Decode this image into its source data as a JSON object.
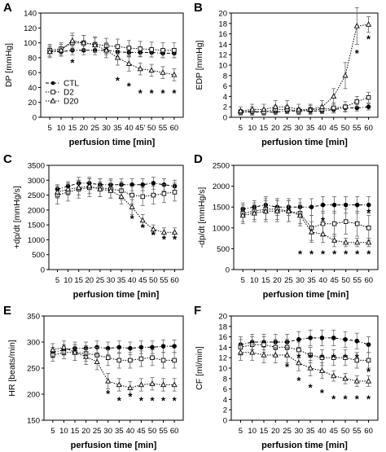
{
  "chart_data": [
    {
      "panel": "A",
      "type": "line",
      "ylabel": "DP [mmHg]",
      "xlabel": "perfusion time [min]",
      "ylim": [
        0,
        140
      ],
      "yticks": [
        0,
        20,
        40,
        60,
        80,
        100,
        120,
        140
      ],
      "x": [
        "5",
        "10",
        "15",
        "20",
        "25",
        "30",
        "35",
        "40",
        "45",
        "50",
        "55",
        "60"
      ],
      "x_display": [
        "5",
        "10",
        "15",
        "20",
        "25",
        "30",
        "35",
        "40",
        "45'",
        "50",
        "55",
        "60"
      ],
      "legend": [
        "CTL",
        "D2",
        "D20"
      ],
      "series": [
        {
          "name": "CTL",
          "marker": "filled-circle",
          "dash": "dash-dot",
          "values": [
            88,
            88,
            90,
            90,
            90,
            90,
            88,
            87,
            87,
            87,
            86,
            86
          ],
          "err": [
            6,
            6,
            6,
            6,
            6,
            6,
            6,
            6,
            6,
            6,
            6,
            6
          ]
        },
        {
          "name": "D2",
          "marker": "open-square",
          "dash": "dot",
          "values": [
            90,
            92,
            100,
            100,
            98,
            96,
            95,
            93,
            92,
            91,
            90,
            90
          ],
          "err": [
            8,
            8,
            10,
            10,
            10,
            10,
            10,
            10,
            10,
            10,
            10,
            10
          ]
        },
        {
          "name": "D20",
          "marker": "open-triangle",
          "dash": "dot",
          "values": [
            88,
            90,
            103,
            100,
            97,
            90,
            80,
            72,
            65,
            63,
            60,
            57
          ],
          "err": [
            8,
            8,
            10,
            10,
            10,
            10,
            10,
            10,
            8,
            8,
            8,
            8
          ]
        }
      ],
      "stars": [
        {
          "x": "15",
          "y": 75
        },
        {
          "x": "35",
          "y": 51
        },
        {
          "x": "40",
          "y": 43
        },
        {
          "x": "45",
          "y": 34
        },
        {
          "x": "50",
          "y": 34
        },
        {
          "x": "55",
          "y": 34
        },
        {
          "x": "60",
          "y": 34
        }
      ]
    },
    {
      "panel": "B",
      "type": "line",
      "ylabel": "EDP [mmHg]",
      "xlabel": "perfusion time [min]",
      "ylim": [
        0,
        20
      ],
      "yticks": [
        0,
        2,
        4,
        6,
        8,
        10,
        12,
        14,
        16,
        18,
        20
      ],
      "x": [
        "5",
        "10",
        "15",
        "20",
        "25",
        "30",
        "35",
        "40",
        "45",
        "50",
        "55",
        "60"
      ],
      "x_display": [
        "5",
        "10",
        "15",
        "20",
        "25",
        "30",
        "35",
        "40",
        "45",
        "50",
        "55",
        "60"
      ],
      "series": [
        {
          "name": "CTL",
          "marker": "filled-circle",
          "dash": "dash-dot",
          "values": [
            1.0,
            1.0,
            1.0,
            1.0,
            1.2,
            1.2,
            1.2,
            1.2,
            1.5,
            1.8,
            1.8,
            2.0
          ],
          "err": [
            0.5,
            0.5,
            0.5,
            0.5,
            0.5,
            0.5,
            0.5,
            0.5,
            0.5,
            0.6,
            0.6,
            0.6
          ]
        },
        {
          "name": "D2",
          "marker": "open-square",
          "dash": "dot",
          "values": [
            1.0,
            1.2,
            1.0,
            1.5,
            1.5,
            1.2,
            1.5,
            1.5,
            1.8,
            2.0,
            3.0,
            3.8
          ],
          "err": [
            0.5,
            0.8,
            0.6,
            0.8,
            0.8,
            0.6,
            0.8,
            0.8,
            1.0,
            1.0,
            1.0,
            1.0
          ]
        },
        {
          "name": "D20",
          "marker": "open-triangle",
          "dash": "dot",
          "values": [
            1.2,
            1.5,
            1.5,
            2.0,
            2.0,
            1.5,
            1.5,
            2.0,
            4.0,
            8.0,
            17.5,
            17.8
          ],
          "err": [
            0.8,
            1.0,
            1.0,
            1.2,
            1.2,
            1.0,
            1.0,
            1.2,
            1.5,
            2.5,
            3.5,
            1.5
          ]
        }
      ],
      "stars": [
        {
          "x": "55",
          "y": 12.5
        },
        {
          "x": "60",
          "y": 15.2
        }
      ]
    },
    {
      "panel": "C",
      "type": "line",
      "ylabel": "+dp/dt [mmHg/s]",
      "xlabel": "perfusion time [min]",
      "ylim": [
        0,
        3500
      ],
      "yticks": [
        0,
        500,
        1000,
        1500,
        2000,
        2500,
        3000,
        3500
      ],
      "x": [
        "5",
        "10",
        "15",
        "20",
        "25",
        "30",
        "35",
        "40",
        "45",
        "50",
        "55",
        "60"
      ],
      "x_display": [
        "5",
        "10",
        "15",
        "20",
        "25",
        "30",
        "35",
        "40",
        "45",
        "50",
        "55",
        "60"
      ],
      "series": [
        {
          "name": "CTL",
          "marker": "filled-circle",
          "dash": "dash-dot",
          "values": [
            2700,
            2800,
            2900,
            2900,
            2850,
            2850,
            2850,
            2850,
            2850,
            2900,
            2850,
            2800
          ],
          "err": [
            150,
            150,
            200,
            200,
            200,
            200,
            200,
            200,
            200,
            200,
            200,
            200
          ]
        },
        {
          "name": "D2",
          "marker": "open-square",
          "dash": "dot",
          "values": [
            2500,
            2600,
            2700,
            2750,
            2750,
            2700,
            2650,
            2500,
            2450,
            2500,
            2550,
            2600
          ],
          "err": [
            300,
            300,
            300,
            300,
            300,
            300,
            300,
            300,
            300,
            300,
            300,
            300
          ]
        },
        {
          "name": "D20",
          "marker": "open-triangle",
          "dash": "dot",
          "values": [
            2600,
            2700,
            2750,
            2800,
            2700,
            2650,
            2450,
            2100,
            1650,
            1350,
            1250,
            1250
          ],
          "err": [
            200,
            200,
            250,
            250,
            250,
            250,
            250,
            250,
            200,
            150,
            150,
            150
          ]
        }
      ],
      "stars": [
        {
          "x": "40",
          "y": 1750
        },
        {
          "x": "45",
          "y": 1450
        },
        {
          "x": "50",
          "y": 1200
        },
        {
          "x": "55",
          "y": 1050
        },
        {
          "x": "60",
          "y": 1050
        }
      ]
    },
    {
      "panel": "D",
      "type": "line",
      "ylabel": "-dp/dt [mmHg/s]",
      "xlabel": "perfusion time [min]",
      "ylim": [
        0,
        2500
      ],
      "yticks": [
        0,
        500,
        1000,
        1500,
        2000,
        2500
      ],
      "x": [
        "5",
        "10",
        "15",
        "20",
        "25",
        "30",
        "35",
        "40",
        "45",
        "50",
        "55",
        "60"
      ],
      "x_display": [
        "5",
        "10",
        "15",
        "20",
        "25",
        "30",
        "35",
        "40",
        "45",
        "50",
        "55",
        "60"
      ],
      "series": [
        {
          "name": "CTL",
          "marker": "filled-circle",
          "dash": "dash-dot",
          "values": [
            1450,
            1500,
            1550,
            1500,
            1500,
            1500,
            1500,
            1550,
            1550,
            1550,
            1550,
            1550
          ],
          "err": [
            150,
            150,
            200,
            200,
            200,
            200,
            200,
            200,
            200,
            200,
            200,
            200
          ]
        },
        {
          "name": "D2",
          "marker": "open-square",
          "dash": "dot",
          "values": [
            1350,
            1400,
            1450,
            1450,
            1400,
            1350,
            1000,
            1100,
            1100,
            1150,
            1100,
            1000
          ],
          "err": [
            200,
            200,
            250,
            250,
            250,
            250,
            300,
            300,
            300,
            300,
            300,
            300
          ]
        },
        {
          "name": "D20",
          "marker": "open-triangle",
          "dash": "dot",
          "values": [
            1300,
            1350,
            1400,
            1400,
            1400,
            1300,
            900,
            850,
            700,
            650,
            650,
            650
          ],
          "err": [
            200,
            200,
            250,
            250,
            250,
            250,
            250,
            200,
            150,
            100,
            100,
            100
          ]
        }
      ],
      "stars": [
        {
          "x": "30",
          "y": 400
        },
        {
          "x": "35",
          "y": 400
        },
        {
          "x": "40",
          "y": 1200
        },
        {
          "x": "40",
          "y": 400
        },
        {
          "x": "45",
          "y": 400
        },
        {
          "x": "50",
          "y": 400
        },
        {
          "x": "55",
          "y": 400
        },
        {
          "x": "60",
          "y": 1400
        },
        {
          "x": "60",
          "y": 400
        }
      ]
    },
    {
      "panel": "E",
      "type": "line",
      "ylabel": "HR [beats/min]",
      "xlabel": "perfusion time [min]",
      "ylim": [
        150,
        350
      ],
      "yticks": [
        150,
        200,
        250,
        300,
        350
      ],
      "x": [
        "5",
        "10",
        "15",
        "20",
        "25",
        "30",
        "35",
        "40",
        "45",
        "50",
        "55",
        "60"
      ],
      "x_display": [
        "5",
        "10",
        "15",
        "20",
        "25",
        "30",
        "35",
        "40",
        "45",
        "50",
        "55",
        "60"
      ],
      "series": [
        {
          "name": "CTL",
          "marker": "filled-circle",
          "dash": "dash-dot",
          "values": [
            280,
            285,
            288,
            288,
            290,
            288,
            290,
            288,
            290,
            290,
            292,
            292
          ],
          "err": [
            10,
            10,
            12,
            12,
            12,
            12,
            12,
            12,
            12,
            12,
            12,
            12
          ]
        },
        {
          "name": "D2",
          "marker": "open-square",
          "dash": "dot",
          "values": [
            275,
            280,
            280,
            278,
            275,
            270,
            265,
            265,
            268,
            270,
            265,
            265
          ],
          "err": [
            12,
            12,
            15,
            15,
            15,
            15,
            15,
            15,
            15,
            15,
            15,
            15
          ]
        },
        {
          "name": "D20",
          "marker": "open-triangle",
          "dash": "dot",
          "values": [
            285,
            290,
            280,
            272,
            262,
            225,
            218,
            212,
            218,
            220,
            218,
            218
          ],
          "err": [
            12,
            12,
            15,
            15,
            15,
            15,
            12,
            12,
            12,
            12,
            12,
            12
          ]
        }
      ],
      "stars": [
        {
          "x": "30",
          "y": 203
        },
        {
          "x": "35",
          "y": 190
        },
        {
          "x": "40",
          "y": 198
        },
        {
          "x": "45",
          "y": 190
        },
        {
          "x": "50",
          "y": 190
        },
        {
          "x": "55",
          "y": 190
        },
        {
          "x": "60",
          "y": 190
        }
      ]
    },
    {
      "panel": "F",
      "type": "line",
      "ylabel": "CF [ml/min]",
      "xlabel": "perfusion time [min]",
      "ylim": [
        0,
        20
      ],
      "yticks": [
        0,
        2,
        4,
        6,
        8,
        10,
        12,
        14,
        16,
        18,
        20
      ],
      "x": [
        "5",
        "10",
        "15",
        "20",
        "25",
        "30",
        "35",
        "40",
        "45",
        "50",
        "55",
        "60"
      ],
      "x_display": [
        "5",
        "10",
        "15",
        "20",
        "25",
        "30",
        "35",
        "40",
        "45",
        "50",
        "55",
        "60"
      ],
      "series": [
        {
          "name": "CTL",
          "marker": "filled-circle",
          "dash": "dash-dot",
          "values": [
            14.5,
            15.0,
            15.0,
            15.0,
            15.0,
            15.5,
            15.8,
            15.8,
            15.8,
            15.5,
            15.2,
            14.5
          ],
          "err": [
            1.5,
            1.5,
            1.5,
            1.5,
            1.5,
            1.5,
            1.5,
            1.5,
            1.5,
            1.5,
            1.5,
            1.5
          ]
        },
        {
          "name": "D2",
          "marker": "open-square",
          "dash": "dot",
          "values": [
            14.0,
            14.5,
            14.5,
            14.0,
            14.0,
            13.5,
            12.5,
            12.0,
            12.0,
            12.0,
            11.5,
            11.5
          ],
          "err": [
            1.5,
            1.5,
            1.5,
            1.5,
            1.5,
            1.5,
            1.5,
            1.5,
            1.5,
            1.5,
            1.5,
            1.5
          ]
        },
        {
          "name": "D20",
          "marker": "open-triangle",
          "dash": "dot",
          "values": [
            13.0,
            13.0,
            12.5,
            12.5,
            12.5,
            11.0,
            10.0,
            9.5,
            8.5,
            8.0,
            7.5,
            7.5
          ],
          "err": [
            1.5,
            1.5,
            1.5,
            1.5,
            1.5,
            1.5,
            1.5,
            1.5,
            1.0,
            1.0,
            1.0,
            1.0
          ]
        }
      ],
      "stars": [
        {
          "x": "30",
          "y": 12.3
        },
        {
          "x": "35",
          "y": 12.3
        },
        {
          "x": "40",
          "y": 12.3
        },
        {
          "x": "45",
          "y": 12.3
        },
        {
          "x": "50",
          "y": 12.3
        },
        {
          "x": "55",
          "y": 12.3
        },
        {
          "x": "60",
          "y": 9.5
        },
        {
          "x": "25",
          "y": 10.5
        },
        {
          "x": "30",
          "y": 7.8
        },
        {
          "x": "35",
          "y": 6.5
        },
        {
          "x": "40",
          "y": 5.5
        },
        {
          "x": "45",
          "y": 4.3
        },
        {
          "x": "50",
          "y": 4.3
        },
        {
          "x": "55",
          "y": 4.3
        },
        {
          "x": "60",
          "y": 4.3
        }
      ]
    }
  ]
}
